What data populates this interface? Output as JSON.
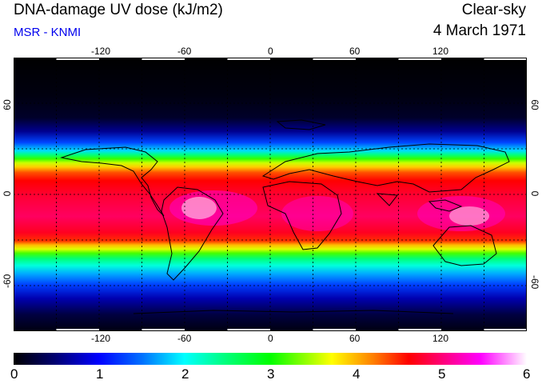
{
  "header": {
    "title": "DNA-damage UV dose (kJ/m2)",
    "subtitle": "MSR - KNMI",
    "condition": "Clear-sky",
    "date": "4 March 1971"
  },
  "map": {
    "lon_range": [
      -180,
      180
    ],
    "lat_range": [
      -90,
      90
    ],
    "lon_ticks": [
      "-120",
      "-60",
      "0",
      "60",
      "120"
    ],
    "lat_ticks": [
      "60",
      "0",
      "-60"
    ],
    "grid_spacing_deg": 30,
    "projection": "equirectangular"
  },
  "colorbar": {
    "min": 0,
    "max": 6,
    "labels": [
      "0",
      "1",
      "2",
      "3",
      "4",
      "5",
      "6"
    ],
    "colors": [
      "#000000",
      "#000070",
      "#0000ff",
      "#0070ff",
      "#00ffff",
      "#00ff80",
      "#00ff00",
      "#ffff00",
      "#ff8000",
      "#ff0000",
      "#ff0080",
      "#ff00ff",
      "#ffffff"
    ]
  }
}
